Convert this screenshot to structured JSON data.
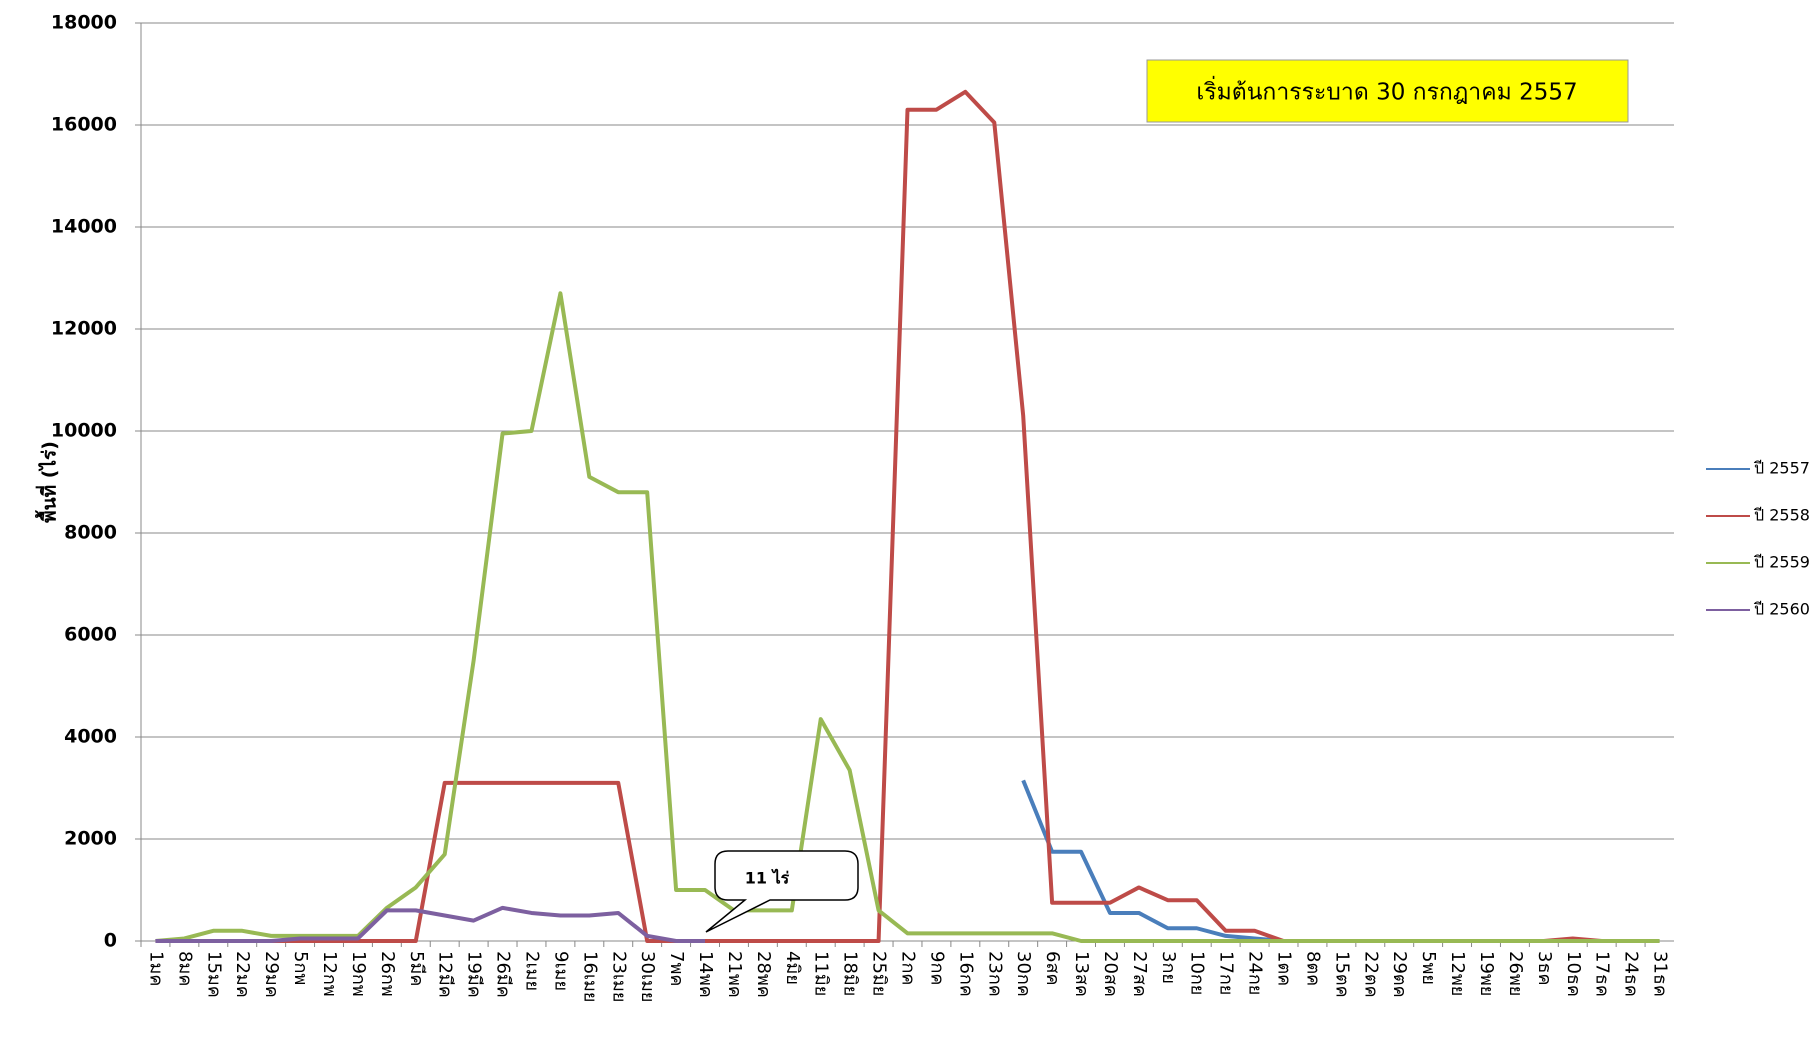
{
  "chart_data": {
    "type": "line",
    "y_label": "พื้นที่ (ไร่)",
    "annotation": "เริ่มต้นการระบาด 30 กรกฎาคม 2557",
    "callout": "11 ไร่",
    "categories": [
      "1มค",
      "8มค",
      "15มค",
      "22มค",
      "29มค",
      "5กพ",
      "12กพ",
      "19กพ",
      "26กพ",
      "5มีค",
      "12มีค",
      "19มีค",
      "26มีค",
      "2เมย",
      "9เมย",
      "16เมย",
      "23เมย",
      "30เมย",
      "7พค",
      "14พค",
      "21พค",
      "28พค",
      "4มิย",
      "11มิย",
      "18มิย",
      "25มิย",
      "2กค",
      "9กค",
      "16กค",
      "23กค",
      "30กค",
      "6สค",
      "13สค",
      "20สค",
      "27สค",
      "3กย",
      "10กย",
      "17กย",
      "24กย",
      "1ตค",
      "8ตค",
      "15ตค",
      "22ตค",
      "29ตค",
      "5พย",
      "12พย",
      "19พย",
      "26พย",
      "3ธค",
      "10ธค",
      "17ธค",
      "24ธค",
      "31ธค"
    ],
    "series": [
      {
        "name": "ปี 2557",
        "color": "#4a7ebb",
        "values": [
          null,
          null,
          null,
          null,
          null,
          null,
          null,
          null,
          null,
          null,
          null,
          null,
          null,
          null,
          null,
          null,
          null,
          null,
          null,
          null,
          null,
          null,
          null,
          null,
          null,
          null,
          null,
          null,
          null,
          null,
          3150,
          1750,
          1750,
          550,
          550,
          250,
          250,
          100,
          50,
          0,
          0,
          0,
          0,
          0,
          0,
          0,
          0,
          0,
          0,
          0,
          0,
          0,
          0
        ]
      },
      {
        "name": "ปี 2558",
        "color": "#be4b48",
        "values": [
          0,
          0,
          0,
          0,
          0,
          0,
          0,
          0,
          0,
          0,
          3100,
          3100,
          3100,
          3100,
          3100,
          3100,
          3100,
          0,
          0,
          0,
          0,
          0,
          0,
          0,
          0,
          0,
          16300,
          16300,
          16650,
          16050,
          10300,
          750,
          750,
          750,
          1050,
          800,
          800,
          200,
          200,
          0,
          0,
          0,
          0,
          0,
          0,
          0,
          0,
          0,
          0,
          50,
          0,
          0,
          0
        ]
      },
      {
        "name": "ปี 2559",
        "color": "#98b954",
        "values": [
          0,
          50,
          200,
          200,
          100,
          100,
          100,
          100,
          650,
          1050,
          1700,
          5500,
          9950,
          10000,
          12700,
          9100,
          8800,
          8800,
          1000,
          1000,
          600,
          600,
          600,
          4350,
          3350,
          600,
          150,
          150,
          150,
          150,
          150,
          150,
          0,
          0,
          0,
          0,
          0,
          0,
          0,
          0,
          0,
          0,
          0,
          0,
          0,
          0,
          0,
          0,
          0,
          0,
          0,
          0,
          0
        ]
      },
      {
        "name": "ปี 2560",
        "color": "#7d60a0",
        "values": [
          0,
          0,
          0,
          0,
          0,
          50,
          50,
          50,
          600,
          600,
          500,
          400,
          650,
          550,
          500,
          500,
          550,
          100,
          0,
          0,
          null,
          null,
          null,
          null,
          null,
          null,
          null,
          null,
          null,
          null,
          null,
          null,
          null,
          null,
          null,
          null,
          null,
          null,
          null,
          null,
          null,
          null,
          null,
          null,
          null,
          null,
          null,
          null,
          null,
          null,
          null,
          null,
          null
        ]
      }
    ],
    "ylim": [
      0,
      18000
    ],
    "yticks": [
      0,
      2000,
      4000,
      6000,
      8000,
      10000,
      12000,
      14000,
      16000,
      18000
    ],
    "grid": true
  }
}
